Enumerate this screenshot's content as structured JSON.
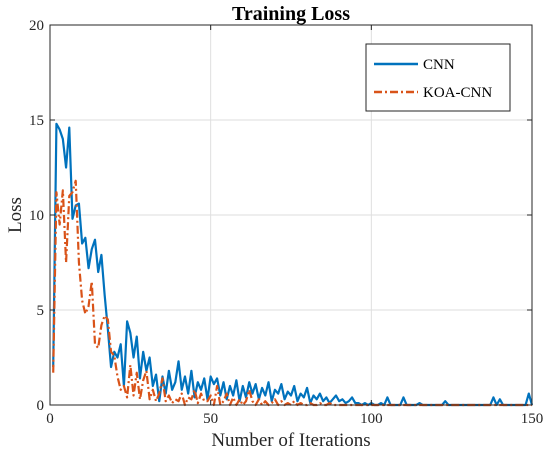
{
  "chart_data": {
    "type": "line",
    "title": "Training Loss",
    "xlabel": "Number of Iterations",
    "ylabel": "Loss",
    "xlim": [
      0,
      150
    ],
    "ylim": [
      0,
      20
    ],
    "xticks": [
      "0",
      "50",
      "100",
      "150"
    ],
    "yticks": [
      "0",
      "5",
      "10",
      "15",
      "20"
    ],
    "grid": true,
    "legend_position": "top-right",
    "series": [
      {
        "name": "CNN",
        "color": "#0072BD",
        "style": "solid",
        "x": [
          1,
          2,
          3,
          4,
          5,
          6,
          7,
          8,
          9,
          10,
          11,
          12,
          13,
          14,
          15,
          16,
          17,
          18,
          19,
          20,
          21,
          22,
          23,
          24,
          25,
          26,
          27,
          28,
          29,
          30,
          31,
          32,
          33,
          34,
          35,
          36,
          37,
          38,
          39,
          40,
          41,
          42,
          43,
          44,
          45,
          46,
          47,
          48,
          49,
          50,
          51,
          52,
          53,
          54,
          55,
          56,
          57,
          58,
          59,
          60,
          61,
          62,
          63,
          64,
          65,
          66,
          67,
          68,
          69,
          70,
          71,
          72,
          73,
          74,
          75,
          76,
          77,
          78,
          79,
          80,
          81,
          82,
          83,
          84,
          85,
          86,
          87,
          88,
          89,
          90,
          91,
          92,
          93,
          94,
          95,
          96,
          97,
          98,
          99,
          100,
          101,
          102,
          103,
          104,
          105,
          106,
          107,
          108,
          109,
          110,
          111,
          112,
          113,
          114,
          115,
          116,
          117,
          118,
          119,
          120,
          121,
          122,
          123,
          124,
          125,
          126,
          127,
          128,
          129,
          130,
          131,
          132,
          133,
          134,
          135,
          136,
          137,
          138,
          139,
          140,
          141,
          142,
          143,
          144,
          145,
          146,
          147,
          148,
          149,
          150
        ],
        "y": [
          2.0,
          14.8,
          14.5,
          14.0,
          12.5,
          14.6,
          9.8,
          10.5,
          10.6,
          8.5,
          8.8,
          7.2,
          8.2,
          8.7,
          7.0,
          7.9,
          5.8,
          4.0,
          2.0,
          2.8,
          2.5,
          3.2,
          1.0,
          4.4,
          3.8,
          2.5,
          3.6,
          1.4,
          2.8,
          1.8,
          2.5,
          1.0,
          1.6,
          0.2,
          1.5,
          0.6,
          1.8,
          0.8,
          1.2,
          2.3,
          0.8,
          1.5,
          0.6,
          1.8,
          0.4,
          1.2,
          0.8,
          1.4,
          0.3,
          1.5,
          1.1,
          1.4,
          0.5,
          1.2,
          0.3,
          1.0,
          0.5,
          1.3,
          0.2,
          1.0,
          0.4,
          1.2,
          0.6,
          1.1,
          0.3,
          0.9,
          0.5,
          1.2,
          0.2,
          0.8,
          0.6,
          1.1,
          0.3,
          0.7,
          0.5,
          1.0,
          0.2,
          0.6,
          0.4,
          0.9,
          0.1,
          0.5,
          0.3,
          0.6,
          0.2,
          0.4,
          0.1,
          0.3,
          0.5,
          0.2,
          0.3,
          0.1,
          0.2,
          0.4,
          0.1,
          0.1,
          0.0,
          0.1,
          0.0,
          0.1,
          0.0,
          0.0,
          0.1,
          0.0,
          0.4,
          0.0,
          0.0,
          0.0,
          0.0,
          0.4,
          0.0,
          0.0,
          0.0,
          0.0,
          0.1,
          0.0,
          0.0,
          0.0,
          0.0,
          0.0,
          0.0,
          0.0,
          0.2,
          0.0,
          0.0,
          0.0,
          0.0,
          0.0,
          0.0,
          0.0,
          0.0,
          0.0,
          0.0,
          0.0,
          0.0,
          0.0,
          0.0,
          0.4,
          0.0,
          0.3,
          0.0,
          0.0,
          0.0,
          0.0,
          0.0,
          0.0,
          0.0,
          0.0,
          0.6,
          0.0
        ]
      },
      {
        "name": "KOA-CNN",
        "color": "#D95319",
        "style": "dashdot",
        "x": [
          1,
          2,
          3,
          4,
          5,
          6,
          7,
          8,
          9,
          10,
          11,
          12,
          13,
          14,
          15,
          16,
          17,
          18,
          19,
          20,
          21,
          22,
          23,
          24,
          25,
          26,
          27,
          28,
          29,
          30,
          31,
          32,
          33,
          34,
          35,
          36,
          37,
          38,
          39,
          40,
          41,
          42,
          43,
          44,
          45,
          46,
          47,
          48,
          49,
          50,
          51,
          52,
          53,
          54,
          55,
          56,
          57,
          58,
          59,
          60,
          61,
          62,
          63,
          64,
          65,
          66,
          67,
          68,
          69,
          70,
          71,
          72,
          73,
          74,
          75,
          76,
          77,
          78,
          79,
          80,
          81,
          82,
          83,
          84,
          85,
          86,
          87,
          88,
          89,
          90,
          91,
          92,
          93,
          94,
          95,
          96,
          97,
          98,
          99,
          100,
          101,
          102,
          103,
          104,
          105,
          106,
          107,
          108,
          109,
          110,
          111,
          112,
          113,
          114,
          115,
          116,
          117,
          118,
          119,
          120,
          121,
          122,
          123,
          124,
          125,
          126,
          127,
          128,
          129,
          130,
          131,
          132,
          133,
          134,
          135,
          136,
          137,
          138,
          139,
          140,
          141,
          142,
          143,
          144,
          145,
          146,
          147,
          148,
          149,
          150
        ],
        "y": [
          1.7,
          11.2,
          9.5,
          11.3,
          7.5,
          11.0,
          11.2,
          11.8,
          7.5,
          5.5,
          4.8,
          5.2,
          6.5,
          3.2,
          3.0,
          4.2,
          4.7,
          4.5,
          2.8,
          2.6,
          1.5,
          0.8,
          1.0,
          0.4,
          2.1,
          0.5,
          1.7,
          0.3,
          1.3,
          1.8,
          0.3,
          0.8,
          0.2,
          0.6,
          1.4,
          0.2,
          0.5,
          0.1,
          0.3,
          0.2,
          0.6,
          0.0,
          0.4,
          0.3,
          0.8,
          0.1,
          0.6,
          0.2,
          0.2,
          0.5,
          0.0,
          1.0,
          0.0,
          0.2,
          0.6,
          0.0,
          0.4,
          0.0,
          0.3,
          0.0,
          0.2,
          0.8,
          0.2,
          0.0,
          0.3,
          0.0,
          0.2,
          0.0,
          0.1,
          0.3,
          0.0,
          0.2,
          0.0,
          0.1,
          0.0,
          0.2,
          0.0,
          0.1,
          0.0,
          0.0,
          0.1,
          0.0,
          0.0,
          0.1,
          0.0,
          0.0,
          0.1,
          0.0,
          0.0,
          0.0,
          0.0,
          0.0,
          0.0,
          0.0,
          0.0,
          0.0,
          0.0,
          0.0,
          0.0,
          0.0,
          0.0,
          0.0,
          0.0,
          0.0,
          0.0,
          0.0,
          0.0,
          0.0,
          0.0,
          0.0,
          0.0,
          0.0,
          0.0,
          0.0,
          0.0,
          0.0,
          0.0,
          0.0,
          0.0,
          0.0,
          0.0,
          0.0,
          0.0,
          0.0,
          0.0,
          0.0,
          0.0,
          0.0,
          0.0,
          0.0,
          0.0,
          0.0,
          0.0,
          0.0,
          0.0,
          0.0,
          0.0,
          0.0,
          0.0,
          0.0,
          0.0,
          0.0,
          0.0,
          0.0,
          0.0,
          0.0,
          0.0,
          0.0,
          0.0,
          0.0
        ]
      }
    ]
  }
}
